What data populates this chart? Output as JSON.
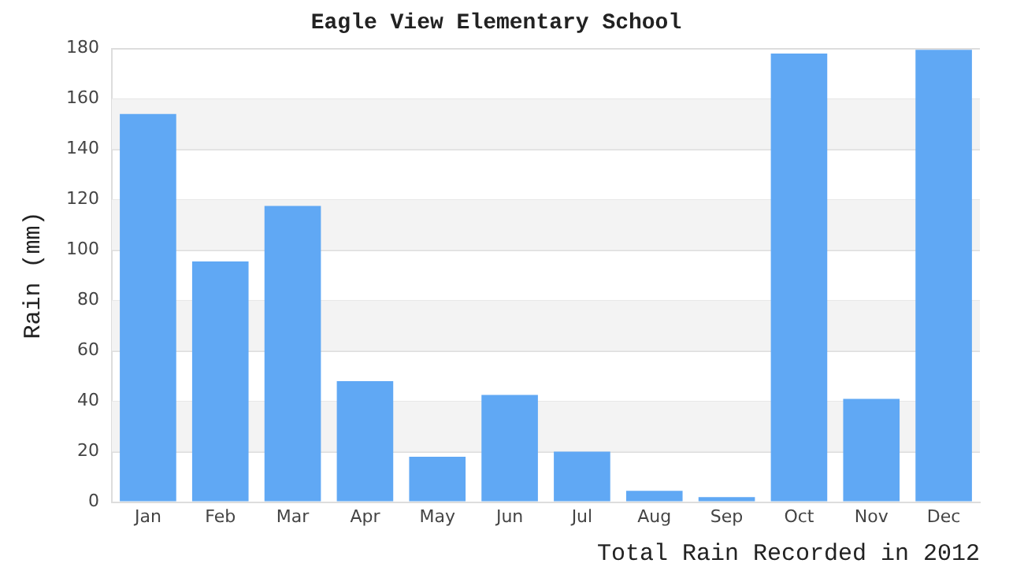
{
  "chart_data": {
    "type": "bar",
    "title": "Eagle View Elementary School",
    "xlabel": "Total Rain Recorded in 2012",
    "ylabel": "Rain (mm)",
    "categories": [
      "Jan",
      "Feb",
      "Mar",
      "Apr",
      "May",
      "Jun",
      "Jul",
      "Aug",
      "Sep",
      "Oct",
      "Nov",
      "Dec"
    ],
    "values": [
      154,
      95.5,
      117.5,
      48,
      18,
      42.5,
      20,
      4.5,
      2,
      178,
      41,
      179.5
    ],
    "color": "#60a8f4",
    "ylim": [
      0,
      180
    ],
    "yticks": [
      0,
      20,
      40,
      60,
      80,
      100,
      120,
      140,
      160,
      180
    ],
    "grid": "y",
    "legend": false
  }
}
